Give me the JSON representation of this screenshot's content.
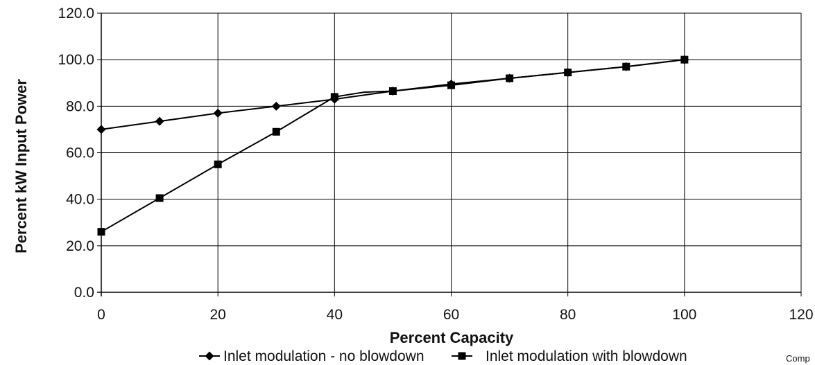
{
  "chart_data": {
    "type": "line",
    "xlabel": "Percent Capacity",
    "ylabel": "Percent kW Input Power",
    "xlim": [
      0,
      120
    ],
    "ylim": [
      0,
      120
    ],
    "x_ticks": [
      0,
      20,
      40,
      60,
      80,
      100,
      120
    ],
    "y_ticks": [
      "0.0",
      "20.0",
      "40.0",
      "60.0",
      "80.0",
      "100.0",
      "120.0"
    ],
    "grid": true,
    "legend_position": "bottom",
    "series": [
      {
        "name": "Inlet modulation - no blowdown",
        "marker": "diamond",
        "color": "#000000",
        "x": [
          0,
          10,
          20,
          30,
          40,
          50,
          60,
          70,
          80,
          90,
          100
        ],
        "y": [
          70,
          73.5,
          77,
          80,
          83,
          86.5,
          89.5,
          92,
          94.5,
          97,
          100
        ]
      },
      {
        "name": "Inlet modulation with blowdown",
        "marker": "square",
        "color": "#000000",
        "x": [
          0,
          10,
          20,
          30,
          40,
          45,
          50,
          60,
          70,
          80,
          90,
          100
        ],
        "y": [
          26,
          40.5,
          55,
          69,
          84,
          86,
          86.5,
          89,
          92,
          94.5,
          97,
          100
        ],
        "marker_x": [
          0,
          10,
          20,
          30,
          40,
          50,
          60,
          70,
          80,
          90,
          100
        ]
      }
    ]
  },
  "footnote": "Comp"
}
